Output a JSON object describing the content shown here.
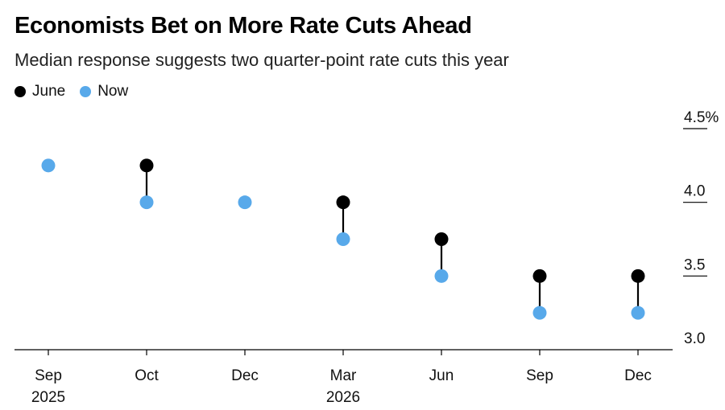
{
  "title": "Economists Bet on More Rate Cuts Ahead",
  "subtitle": "Median response suggests two quarter-point rate cuts this year",
  "legend": [
    {
      "name": "June",
      "color": "#000000"
    },
    {
      "name": "Now",
      "color": "#58a9ea"
    }
  ],
  "chart_data": {
    "type": "scatter",
    "title": "Economists Bet on More Rate Cuts Ahead",
    "subtitle": "Median response suggests two quarter-point rate cuts this year",
    "categories": [
      [
        "Sep",
        "2025"
      ],
      [
        "Oct",
        ""
      ],
      [
        "Dec",
        ""
      ],
      [
        "Mar",
        "2026"
      ],
      [
        "Jun",
        ""
      ],
      [
        "Sep",
        ""
      ],
      [
        "Dec",
        ""
      ]
    ],
    "series": [
      {
        "name": "June",
        "color": "#000000",
        "values": [
          null,
          4.25,
          null,
          4.0,
          3.75,
          3.5,
          3.5
        ]
      },
      {
        "name": "Now",
        "color": "#58a9ea",
        "values": [
          4.25,
          4.0,
          4.0,
          3.75,
          3.5,
          3.25,
          3.25
        ]
      }
    ],
    "y_ticks": [
      {
        "value": 4.5,
        "label": "4.5%"
      },
      {
        "value": 4.0,
        "label": "4.0"
      },
      {
        "value": 3.5,
        "label": "3.5"
      },
      {
        "value": 3.0,
        "label": "3.0"
      }
    ],
    "ylim": [
      3.0,
      4.5
    ],
    "xlabel": "",
    "ylabel": "",
    "legend_position": "top-left",
    "grid": false
  }
}
